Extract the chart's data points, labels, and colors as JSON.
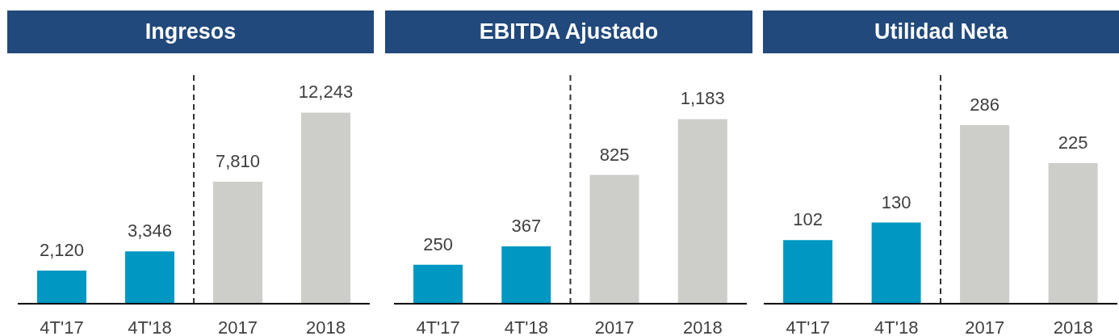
{
  "chart_data": [
    {
      "type": "bar",
      "title": "Ingresos",
      "categories": [
        "4T'17",
        "4T'18",
        "2017",
        "2018"
      ],
      "values": [
        2120,
        3346,
        7810,
        12243
      ],
      "colors": [
        "#0098c3",
        "#0098c3",
        "#cdcdc9",
        "#cdcdc9"
      ],
      "value_labels": [
        "2,120",
        "3,346",
        "7,810",
        "12,243"
      ],
      "ylim": [
        0,
        14800
      ],
      "tick_labels": "x"
    },
    {
      "type": "bar",
      "title": "EBITDA Ajustado",
      "categories": [
        "4T'17",
        "4T'18",
        "2017",
        "2018"
      ],
      "values": [
        250,
        367,
        825,
        1183
      ],
      "colors": [
        "#0098c3",
        "#0098c3",
        "#cdcdc9",
        "#cdcdc9"
      ],
      "value_labels": [
        "250",
        "367",
        "825",
        "1,183"
      ],
      "ylim": [
        0,
        1480
      ],
      "tick_labels": "x"
    },
    {
      "type": "bar",
      "title": "Utilidad Neta",
      "categories": [
        "4T'17",
        "4T'18",
        "2017",
        "2018"
      ],
      "values": [
        102,
        130,
        286,
        225
      ],
      "colors": [
        "#0098c3",
        "#0098c3",
        "#cdcdc9",
        "#cdcdc9"
      ],
      "data_labels": true,
      "ylim": [
        0,
        370
      ],
      "tick_labels": "x"
    }
  ]
}
